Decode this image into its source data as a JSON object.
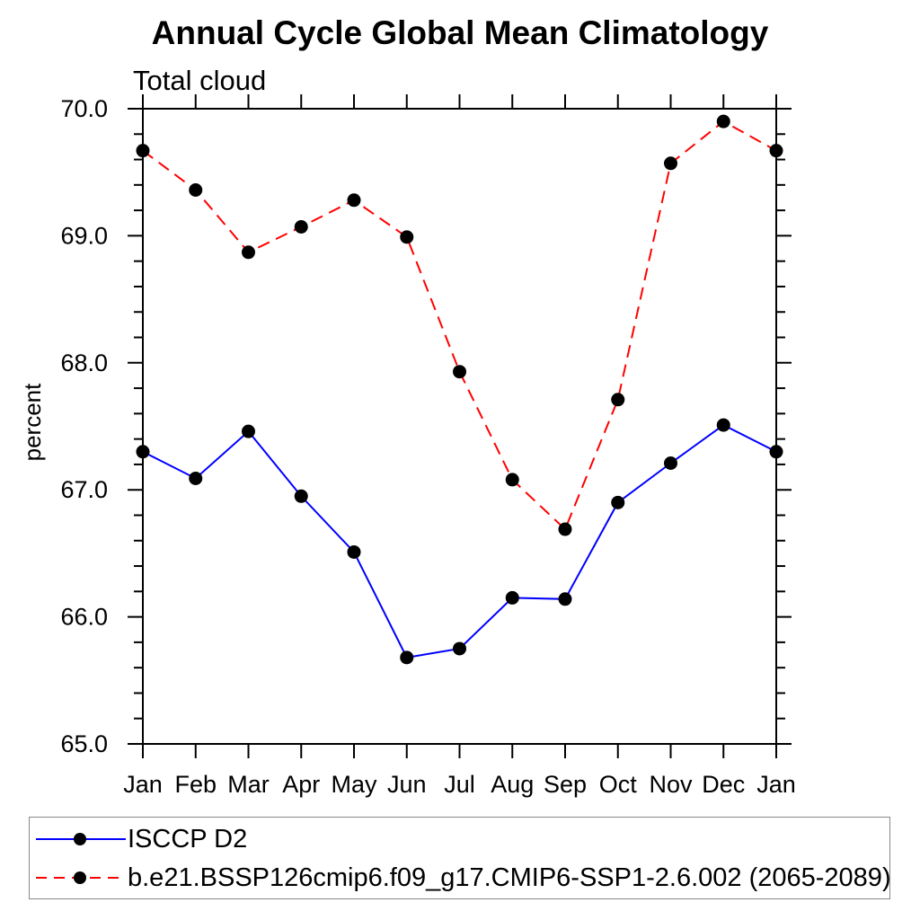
{
  "title": "Annual Cycle Global Mean Climatology",
  "subtitle": "Total cloud",
  "colors": {
    "background": "#ffffff",
    "axis": "#000000",
    "text": "#000000",
    "legend_border": "#888888",
    "series_obs": "#0000ff",
    "series_model": "#ff0000",
    "marker": "#000000"
  },
  "chart_data": {
    "type": "line",
    "title": "Annual Cycle Global Mean Climatology",
    "subtitle": "Total cloud",
    "xlabel": "",
    "ylabel": "percent",
    "ylim": [
      65.0,
      70.0
    ],
    "ytick_interval": 1.0,
    "ytick_minor_interval": 0.2,
    "ytick_labels": [
      "65.0",
      "66.0",
      "67.0",
      "68.0",
      "69.0",
      "70.0"
    ],
    "grid": false,
    "legend_position": "bottom",
    "categories": [
      "Jan",
      "Feb",
      "Mar",
      "Apr",
      "May",
      "Jun",
      "Jul",
      "Aug",
      "Sep",
      "Oct",
      "Nov",
      "Dec",
      "Jan"
    ],
    "series": [
      {
        "name": "ISCCP D2",
        "color": "#0000ff",
        "line_style": "solid",
        "marker": "filled-circle",
        "marker_color": "#000000",
        "values": [
          67.3,
          67.09,
          67.46,
          66.95,
          66.51,
          65.68,
          65.75,
          66.15,
          66.14,
          66.9,
          67.21,
          67.51,
          67.3
        ]
      },
      {
        "name": "b.e21.BSSP126cmip6.f09_g17.CMIP6-SSP1-2.6.002 (2065-2089)",
        "color": "#ff0000",
        "line_style": "dashed",
        "marker": "filled-circle",
        "marker_color": "#000000",
        "values": [
          69.67,
          69.36,
          68.87,
          69.07,
          69.28,
          68.99,
          67.93,
          67.08,
          66.69,
          67.71,
          69.57,
          69.9,
          69.67
        ]
      }
    ]
  }
}
